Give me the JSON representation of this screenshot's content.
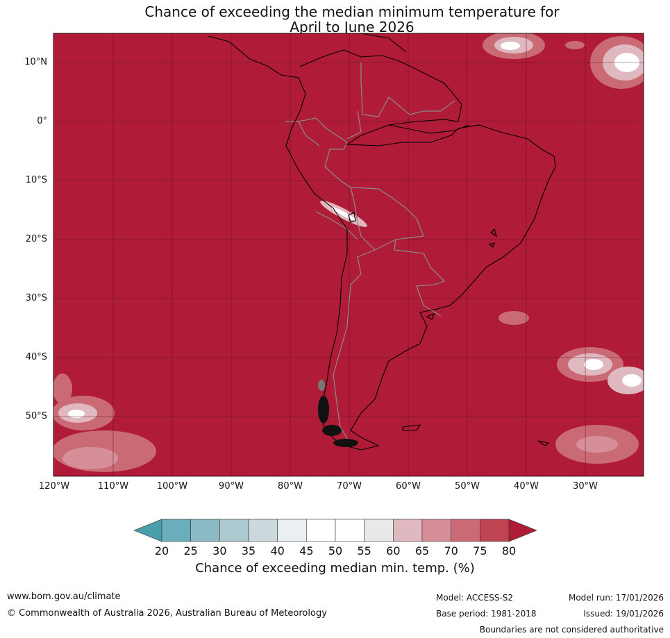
{
  "title_line1": "Chance of exceeding the median minimum temperature for",
  "title_line2": "April to June 2026",
  "lat_labels": [
    "10°N",
    "0°",
    "10°S",
    "20°S",
    "30°S",
    "40°S",
    "50°S"
  ],
  "lon_labels": [
    "120°W",
    "110°W",
    "100°W",
    "90°W",
    "80°W",
    "70°W",
    "60°W",
    "50°W",
    "40°W",
    "30°W"
  ],
  "colorbar": {
    "ticks": [
      "20",
      "25",
      "30",
      "35",
      "40",
      "45",
      "50",
      "55",
      "60",
      "65",
      "70",
      "75",
      "80"
    ],
    "label": "Chance of exceeding median min. temp. (%)",
    "colors": [
      "#4a9eab",
      "#6aaebd",
      "#8bb9c4",
      "#abc9cf",
      "#cbd9dd",
      "#eaf0f2",
      "#ffffff",
      "#ffffff",
      "#e9e9e9",
      "#e0b9c0",
      "#d68f98",
      "#c96a74",
      "#be4452",
      "#b01c37"
    ]
  },
  "dominant_color": "#b01c37",
  "footer": {
    "website": "www.bom.gov.au/climate",
    "copyright": "© Commonwealth of Australia 2026, Australian Bureau of Meteorology",
    "model": "Model: ACCESS-S2",
    "base_period": "Base period: 1981-2018",
    "model_run": "Model run: 17/01/2026",
    "issued": "Issued: 19/01/2026",
    "disclaimer": "Boundaries are not considered authoritative"
  }
}
